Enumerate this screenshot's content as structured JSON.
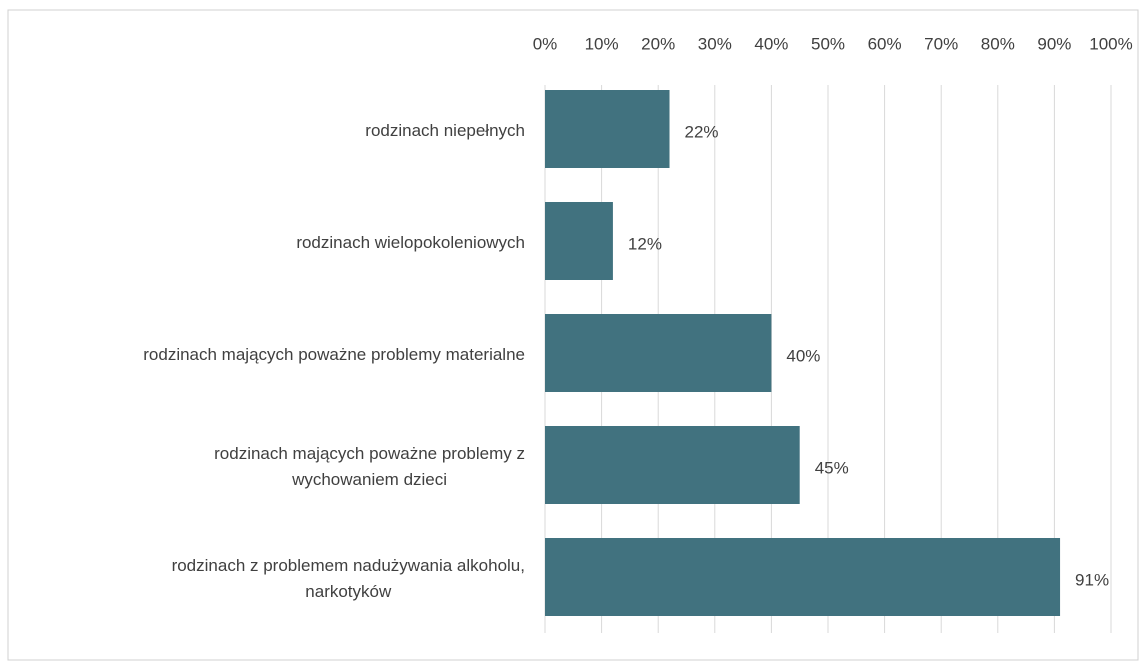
{
  "chart_data": {
    "type": "hbar",
    "categories": [
      "rodzinach niepełnych",
      "rodzinach wielopokoleniowych",
      "rodzinach mających poważne problemy materialne",
      "rodzinach mających poważne problemy z\nwychowaniem dzieci",
      "rodzinach z problemem nadużywania alkoholu,\nnarkotyków"
    ],
    "values": [
      22,
      12,
      40,
      45,
      91
    ],
    "value_labels": [
      "22%",
      "12%",
      "40%",
      "45%",
      "91%"
    ],
    "color": "#41727f",
    "xlim": [
      0,
      100
    ],
    "xticks": [
      {
        "value": 0,
        "label": "0%"
      },
      {
        "value": 10,
        "label": "10%"
      },
      {
        "value": 20,
        "label": "20%"
      },
      {
        "value": 30,
        "label": "30%"
      },
      {
        "value": 40,
        "label": "40%"
      },
      {
        "value": 50,
        "label": "50%"
      },
      {
        "value": 60,
        "label": "60%"
      },
      {
        "value": 70,
        "label": "70%"
      },
      {
        "value": 80,
        "label": "80%"
      },
      {
        "value": 90,
        "label": "90%"
      },
      {
        "value": 100,
        "label": "100%"
      }
    ],
    "grid": true
  }
}
